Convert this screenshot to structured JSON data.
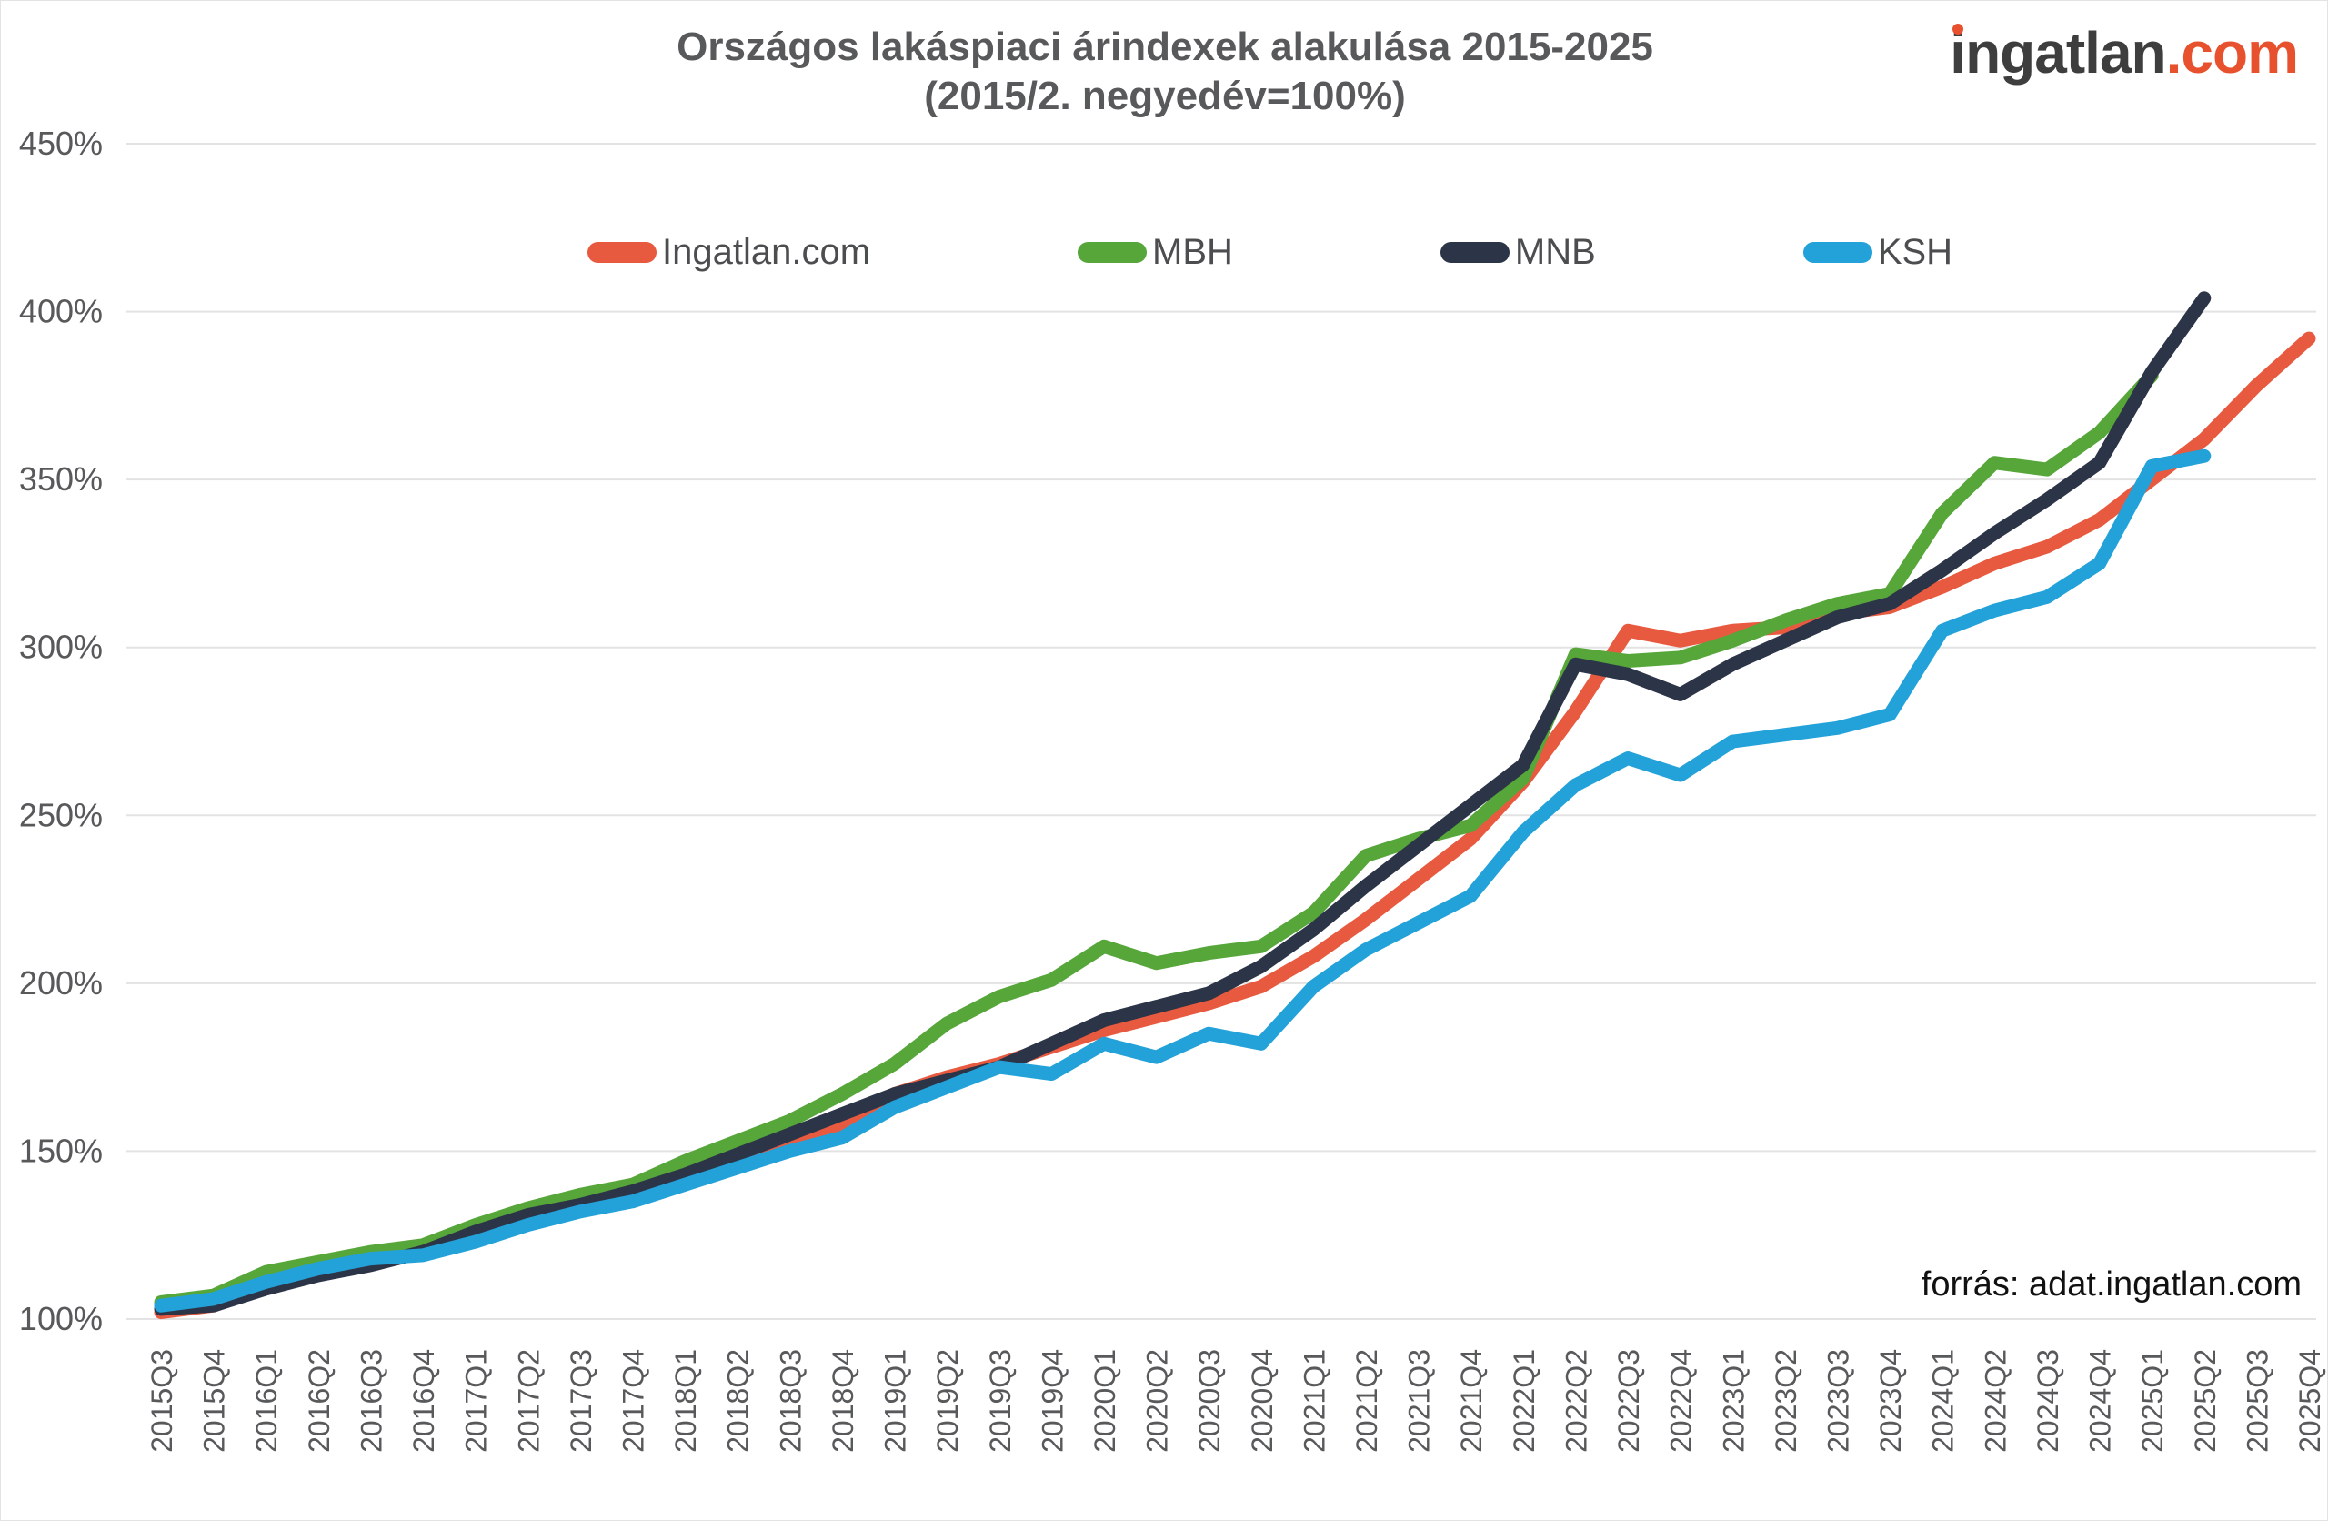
{
  "header": {
    "title_line1": "Országos lakáspiaci árindexek alakulása 2015-2025",
    "title_line2": "(2015/2. negyedév=100%)",
    "logo_main": "ingatlan",
    "logo_suffix": ".com"
  },
  "source_note": "forrás: adat.ingatlan.com",
  "colors": {
    "title_text": "#58595b",
    "axis_text": "#58595b",
    "gridline": "#e3e3e3",
    "logo_dark": "#3e3e3e",
    "logo_orange": "#e8512e",
    "source_text": "#111111"
  },
  "chart_data": {
    "type": "line",
    "title": "Országos lakáspiaci árindexek alakulása 2015-2025",
    "subtitle": "(2015/2. negyedév=100%)",
    "xlabel": "",
    "ylabel": "",
    "ylim": [
      100,
      450
    ],
    "grid": "horizontal",
    "legend_position": "top",
    "ytick_values": [
      100,
      150,
      200,
      250,
      300,
      350,
      400,
      450
    ],
    "ytick_labels": [
      "100%",
      "150%",
      "200%",
      "250%",
      "300%",
      "350%",
      "400%",
      "450%"
    ],
    "x": [
      "2015Q3",
      "2015Q4",
      "2016Q1",
      "2016Q2",
      "2016Q3",
      "2016Q4",
      "2017Q1",
      "2017Q2",
      "2017Q3",
      "2017Q4",
      "2018Q1",
      "2018Q2",
      "2018Q3",
      "2018Q4",
      "2019Q1",
      "2019Q2",
      "2019Q3",
      "2019Q4",
      "2020Q1",
      "2020Q2",
      "2020Q3",
      "2020Q4",
      "2021Q1",
      "2021Q2",
      "2021Q3",
      "2021Q4",
      "2022Q1",
      "2022Q2",
      "2022Q3",
      "2022Q4",
      "2023Q1",
      "2023Q2",
      "2023Q3",
      "2023Q4",
      "2024Q1",
      "2024Q2",
      "2024Q3",
      "2024Q4",
      "2025Q1",
      "2025Q2",
      "2025Q3",
      "2025Q4"
    ],
    "series": [
      {
        "name": "Ingatlan.com",
        "color": "#e85a3f",
        "values": [
          102,
          104,
          110,
          114,
          117,
          120,
          124,
          129,
          133,
          136,
          142,
          147,
          153,
          158,
          167,
          172,
          176,
          181,
          186,
          190,
          194,
          199,
          208,
          219,
          231,
          243,
          260,
          281,
          305,
          302,
          305,
          306,
          310,
          312,
          318,
          325,
          330,
          338,
          350,
          362,
          378,
          392
        ]
      },
      {
        "name": "MBH",
        "color": "#56a63a",
        "values": [
          105,
          107,
          114,
          117,
          120,
          122,
          128,
          133,
          137,
          140,
          147,
          153,
          159,
          167,
          176,
          188,
          196,
          201,
          211,
          206,
          209,
          211,
          221,
          238,
          243,
          247,
          261,
          298,
          296,
          297,
          302,
          308,
          313,
          316,
          340,
          355,
          353,
          364,
          381,
          null,
          null,
          null
        ]
      },
      {
        "name": "MNB",
        "color": "#2c3447",
        "values": [
          103,
          104,
          109,
          113,
          116,
          120,
          126,
          131,
          134,
          138,
          143,
          149,
          155,
          161,
          167,
          171,
          175,
          182,
          189,
          193,
          197,
          205,
          216,
          229,
          241,
          253,
          265,
          295,
          292,
          286,
          295,
          302,
          309,
          313,
          323,
          334,
          344,
          355,
          382,
          404,
          null,
          null
        ]
      },
      {
        "name": "KSH",
        "color": "#23a1d9",
        "values": [
          104,
          106,
          111,
          115,
          118,
          119,
          123,
          128,
          132,
          135,
          140,
          145,
          150,
          154,
          163,
          169,
          175,
          173,
          182,
          178,
          185,
          182,
          199,
          210,
          218,
          226,
          245,
          259,
          267,
          262,
          272,
          274,
          276,
          280,
          305,
          311,
          315,
          325,
          354,
          357,
          null,
          null
        ]
      }
    ]
  }
}
